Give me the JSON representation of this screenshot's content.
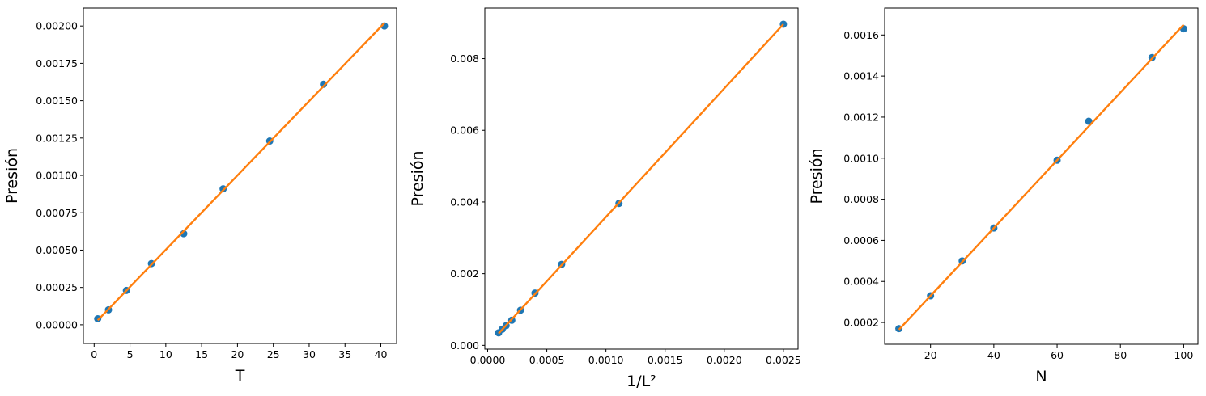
{
  "chart_data": [
    {
      "type": "scatter",
      "xlabel": "T",
      "ylabel": "Presión",
      "xlim": [
        -1.5,
        42.2
      ],
      "ylim": [
        -0.000125,
        0.00212
      ],
      "xticks": [
        0,
        5,
        10,
        15,
        20,
        25,
        30,
        35,
        40
      ],
      "xtick_labels": [
        "0",
        "5",
        "10",
        "15",
        "20",
        "25",
        "30",
        "35",
        "40"
      ],
      "yticks": [
        0,
        0.00025,
        0.0005,
        0.00075,
        0.001,
        0.00125,
        0.0015,
        0.00175,
        0.002
      ],
      "ytick_labels": [
        "0.00000",
        "0.00025",
        "0.00050",
        "0.00075",
        "0.00100",
        "0.00125",
        "0.00150",
        "0.00175",
        "0.00200"
      ],
      "grid": false,
      "series": [
        {
          "kind": "scatter",
          "color": "#1f77b4",
          "x": [
            0.5,
            2.0,
            4.5,
            8.0,
            12.5,
            18.0,
            24.5,
            32.0,
            40.5
          ],
          "y": [
            4e-05,
            0.0001,
            0.00023,
            0.00041,
            0.00061,
            0.00091,
            0.00123,
            0.00161,
            0.002
          ]
        },
        {
          "kind": "line",
          "color": "#ff7f0e",
          "x": [
            0.5,
            40.5
          ],
          "y": [
            3e-05,
            0.00202
          ]
        }
      ]
    },
    {
      "type": "scatter",
      "xlabel": "1/L²",
      "ylabel": "Presión",
      "xlim": [
        -2.4e-05,
        0.002624
      ],
      "ylim": [
        -0.000105,
        0.00941
      ],
      "xticks": [
        0,
        0.0005,
        0.001,
        0.0015,
        0.002,
        0.0025
      ],
      "xtick_labels": [
        "0.0000",
        "0.0005",
        "0.0010",
        "0.0015",
        "0.0020",
        "0.0025"
      ],
      "yticks": [
        0,
        0.002,
        0.004,
        0.006,
        0.008
      ],
      "ytick_labels": [
        "0.000",
        "0.002",
        "0.004",
        "0.006",
        "0.008"
      ],
      "grid": false,
      "series": [
        {
          "kind": "scatter",
          "color": "#1f77b4",
          "x": [
            9.25e-05,
            0.000123,
            0.000156,
            0.000204,
            0.000278,
            0.0004,
            0.000625,
            0.00111,
            0.0025
          ],
          "y": [
            0.00035,
            0.00045,
            0.00055,
            0.0007,
            0.00098,
            0.00146,
            0.00226,
            0.00396,
            0.00896
          ]
        },
        {
          "kind": "line",
          "color": "#ff7f0e",
          "x": [
            9.25e-05,
            0.0025
          ],
          "y": [
            0.00033,
            0.00896
          ]
        }
      ]
    },
    {
      "type": "scatter",
      "xlabel": "N",
      "ylabel": "Presión",
      "xlim": [
        5.5,
        104.5
      ],
      "ylim": [
        9.4e-05,
        0.001731
      ],
      "xticks": [
        20,
        40,
        60,
        80,
        100
      ],
      "xtick_labels": [
        "20",
        "40",
        "60",
        "80",
        "100"
      ],
      "yticks": [
        0.0002,
        0.0004,
        0.0006,
        0.0008,
        0.001,
        0.0012,
        0.0014,
        0.0016
      ],
      "ytick_labels": [
        "0.0002",
        "0.0004",
        "0.0006",
        "0.0008",
        "0.0010",
        "0.0012",
        "0.0014",
        "0.0016"
      ],
      "grid": false,
      "series": [
        {
          "kind": "scatter",
          "color": "#1f77b4",
          "x": [
            10,
            20,
            30,
            40,
            60,
            70,
            90,
            100
          ],
          "y": [
            0.00017,
            0.00033,
            0.0005,
            0.00066,
            0.00099,
            0.00118,
            0.00149,
            0.00163
          ]
        },
        {
          "kind": "line",
          "color": "#ff7f0e",
          "x": [
            10,
            100
          ],
          "y": [
            0.000165,
            0.00165
          ]
        }
      ]
    }
  ]
}
